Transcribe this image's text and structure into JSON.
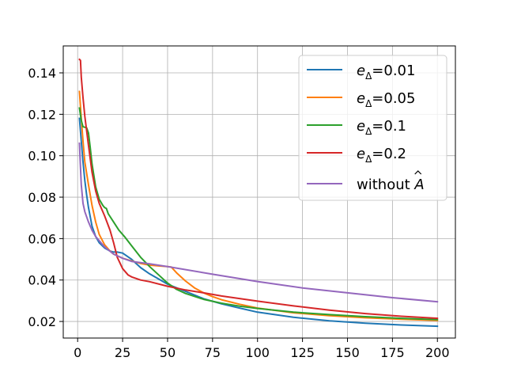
{
  "chart_data": {
    "type": "line",
    "title": "",
    "xlabel": "",
    "ylabel": "",
    "xlim": [
      -8,
      210
    ],
    "ylim": [
      0.012,
      0.153
    ],
    "xticks": [
      0,
      25,
      50,
      75,
      100,
      125,
      150,
      175,
      200
    ],
    "xtick_labels": [
      "0",
      "25",
      "50",
      "75",
      "100",
      "125",
      "150",
      "175",
      "200"
    ],
    "yticks": [
      0.02,
      0.04,
      0.06,
      0.08,
      0.1,
      0.12,
      0.14
    ],
    "ytick_labels": [
      "0.02",
      "0.04",
      "0.06",
      "0.08",
      "0.10",
      "0.12",
      "0.14"
    ],
    "grid": true,
    "legend_position": "top-right",
    "series": [
      {
        "name": "e",
        "name_sub": "Δ",
        "name_suffix": "=0.01",
        "color": "#1f77b4",
        "points": [
          [
            1,
            0.118
          ],
          [
            2,
            0.107
          ],
          [
            3,
            0.097
          ],
          [
            4,
            0.088
          ],
          [
            5,
            0.081
          ],
          [
            6,
            0.075
          ],
          [
            8,
            0.066
          ],
          [
            10,
            0.061
          ],
          [
            12,
            0.058
          ],
          [
            15,
            0.0555
          ],
          [
            18,
            0.054
          ],
          [
            20,
            0.0535
          ],
          [
            22,
            0.0535
          ],
          [
            25,
            0.053
          ],
          [
            30,
            0.05
          ],
          [
            35,
            0.046
          ],
          [
            40,
            0.043
          ],
          [
            45,
            0.0405
          ],
          [
            50,
            0.038
          ],
          [
            60,
            0.0345
          ],
          [
            70,
            0.031
          ],
          [
            80,
            0.0285
          ],
          [
            90,
            0.0265
          ],
          [
            100,
            0.0245
          ],
          [
            120,
            0.022
          ],
          [
            140,
            0.0203
          ],
          [
            160,
            0.0192
          ],
          [
            180,
            0.0183
          ],
          [
            200,
            0.0177
          ]
        ]
      },
      {
        "name": "e",
        "name_sub": "Δ",
        "name_suffix": "=0.05",
        "color": "#ff7f0e",
        "points": [
          [
            1,
            0.131
          ],
          [
            2,
            0.118
          ],
          [
            3,
            0.107
          ],
          [
            4,
            0.097
          ],
          [
            6,
            0.086
          ],
          [
            8,
            0.076
          ],
          [
            10,
            0.068
          ],
          [
            12,
            0.062
          ],
          [
            15,
            0.057
          ],
          [
            18,
            0.054
          ],
          [
            20,
            0.0525
          ],
          [
            25,
            0.0505
          ],
          [
            30,
            0.0492
          ],
          [
            35,
            0.048
          ],
          [
            40,
            0.0472
          ],
          [
            45,
            0.0468
          ],
          [
            50,
            0.0465
          ],
          [
            52,
            0.0463
          ],
          [
            55,
            0.0435
          ],
          [
            60,
            0.0395
          ],
          [
            65,
            0.0362
          ],
          [
            70,
            0.0338
          ],
          [
            75,
            0.032
          ],
          [
            80,
            0.0305
          ],
          [
            90,
            0.0283
          ],
          [
            100,
            0.0265
          ],
          [
            120,
            0.0242
          ],
          [
            140,
            0.0228
          ],
          [
            160,
            0.0218
          ],
          [
            180,
            0.0211
          ],
          [
            200,
            0.0205
          ]
        ]
      },
      {
        "name": "e",
        "name_sub": "Δ",
        "name_suffix": "=0.1",
        "color": "#2ca02c",
        "points": [
          [
            1,
            0.123
          ],
          [
            2,
            0.117
          ],
          [
            3,
            0.114
          ],
          [
            5,
            0.1135
          ],
          [
            6,
            0.111
          ],
          [
            7,
            0.104
          ],
          [
            8,
            0.096
          ],
          [
            10,
            0.085
          ],
          [
            12,
            0.079
          ],
          [
            14,
            0.076
          ],
          [
            15,
            0.075
          ],
          [
            16,
            0.0745
          ],
          [
            17,
            0.072
          ],
          [
            20,
            0.068
          ],
          [
            23,
            0.064
          ],
          [
            26,
            0.061
          ],
          [
            30,
            0.0565
          ],
          [
            35,
            0.051
          ],
          [
            40,
            0.0465
          ],
          [
            45,
            0.0425
          ],
          [
            50,
            0.0385
          ],
          [
            55,
            0.0355
          ],
          [
            60,
            0.0335
          ],
          [
            70,
            0.0307
          ],
          [
            80,
            0.0288
          ],
          [
            90,
            0.0274
          ],
          [
            100,
            0.0263
          ],
          [
            120,
            0.0245
          ],
          [
            140,
            0.0233
          ],
          [
            160,
            0.0223
          ],
          [
            180,
            0.0215
          ],
          [
            200,
            0.0209
          ]
        ]
      },
      {
        "name": "e",
        "name_sub": "Δ",
        "name_suffix": "=0.2",
        "color": "#d62728",
        "points": [
          [
            1,
            0.1465
          ],
          [
            1.6,
            0.146
          ],
          [
            2,
            0.138
          ],
          [
            3,
            0.128
          ],
          [
            4,
            0.119
          ],
          [
            6,
            0.105
          ],
          [
            8,
            0.092
          ],
          [
            10,
            0.083
          ],
          [
            12,
            0.077
          ],
          [
            15,
            0.071
          ],
          [
            18,
            0.064
          ],
          [
            20,
            0.058
          ],
          [
            22,
            0.051
          ],
          [
            25,
            0.0455
          ],
          [
            28,
            0.0425
          ],
          [
            30,
            0.0415
          ],
          [
            35,
            0.04
          ],
          [
            40,
            0.0392
          ],
          [
            50,
            0.037
          ],
          [
            60,
            0.0352
          ],
          [
            70,
            0.0338
          ],
          [
            80,
            0.0323
          ],
          [
            100,
            0.0298
          ],
          [
            120,
            0.0275
          ],
          [
            140,
            0.0255
          ],
          [
            160,
            0.0238
          ],
          [
            180,
            0.0225
          ],
          [
            200,
            0.0215
          ]
        ]
      },
      {
        "name": "without ",
        "name_hat": "A",
        "color": "#9467bd",
        "points": [
          [
            1,
            0.106
          ],
          [
            1.5,
            0.096
          ],
          [
            2,
            0.086
          ],
          [
            3,
            0.077
          ],
          [
            4,
            0.073
          ],
          [
            6,
            0.068
          ],
          [
            8,
            0.064
          ],
          [
            10,
            0.061
          ],
          [
            15,
            0.056
          ],
          [
            20,
            0.0525
          ],
          [
            25,
            0.0505
          ],
          [
            30,
            0.049
          ],
          [
            40,
            0.0478
          ],
          [
            50,
            0.0465
          ],
          [
            75,
            0.0428
          ],
          [
            100,
            0.0393
          ],
          [
            125,
            0.0362
          ],
          [
            150,
            0.0338
          ],
          [
            175,
            0.0315
          ],
          [
            200,
            0.0295
          ]
        ]
      }
    ]
  }
}
